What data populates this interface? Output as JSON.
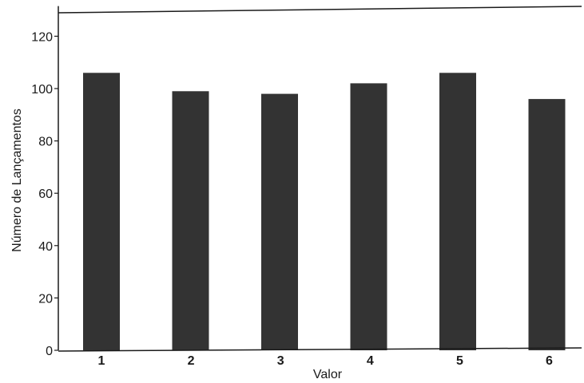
{
  "chart_data": {
    "type": "bar",
    "categories": [
      "1",
      "2",
      "3",
      "4",
      "5",
      "6"
    ],
    "values": [
      106,
      99,
      98,
      102,
      106,
      96
    ],
    "title": "",
    "xlabel": "Valor",
    "ylabel": "Número de Lançamentos",
    "ylim": [
      0,
      130
    ],
    "yticks": [
      "0",
      "20",
      "40",
      "60",
      "80",
      "100",
      "120"
    ],
    "grid": false,
    "legend": "none",
    "bar_color": "#333333",
    "axis_color": "#1a1a1a"
  }
}
